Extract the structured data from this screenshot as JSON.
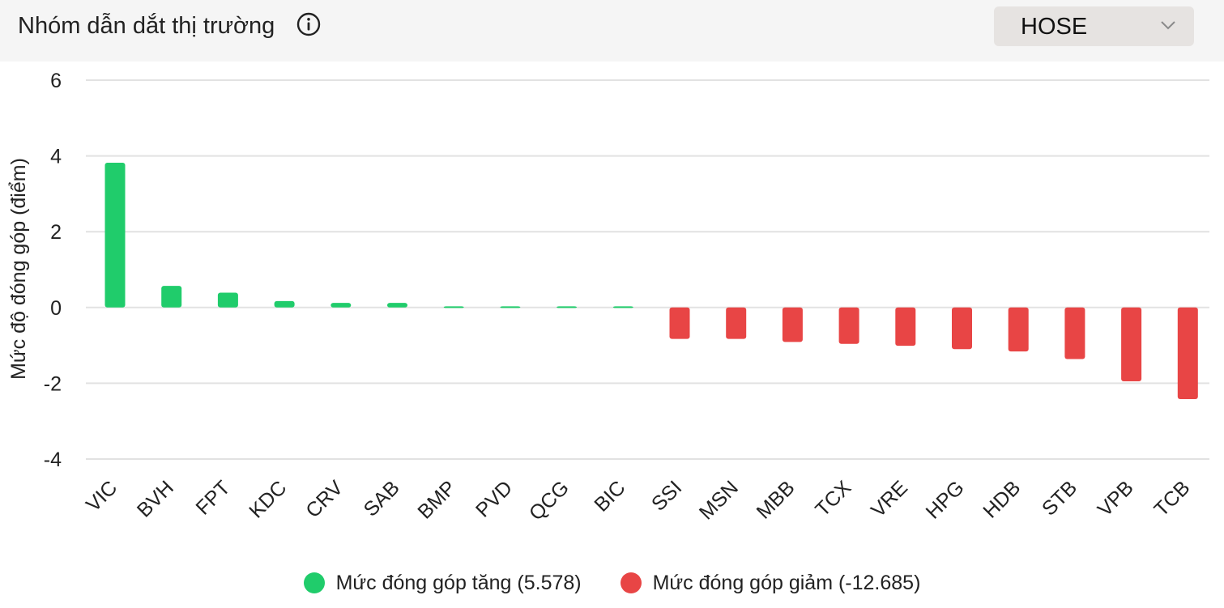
{
  "header": {
    "title": "Nhóm dẫn dắt thị trường",
    "info_icon": "info-icon",
    "exchange_select": {
      "value": "HOSE",
      "icon": "chevron-down-icon"
    }
  },
  "colors": {
    "positive": "#20cc6b",
    "negative": "#e84545",
    "grid": "#e2e2e2",
    "header_bg": "#f5f5f5",
    "select_bg": "#e6e3e1"
  },
  "legend": {
    "positive_label": "Mức đóng góp tăng (5.578)",
    "negative_label": "Mức đóng góp giảm (-12.685)"
  },
  "chart_data": {
    "type": "bar",
    "ylabel": "Mức độ đóng góp (điểm)",
    "ylim": [
      -4,
      6
    ],
    "yticks": [
      -4,
      -2,
      0,
      2,
      4,
      6
    ],
    "grid": true,
    "legend_position": "bottom",
    "categories": [
      "VIC",
      "BVH",
      "FPT",
      "KDC",
      "CRV",
      "SAB",
      "BMP",
      "PVD",
      "QCG",
      "BIC",
      "SSI",
      "MSN",
      "MBB",
      "TCX",
      "VRE",
      "HPG",
      "HDB",
      "STB",
      "VPB",
      "TCB"
    ],
    "values": [
      3.82,
      0.57,
      0.39,
      0.17,
      0.12,
      0.12,
      0.03,
      0.03,
      0.03,
      0.03,
      -0.83,
      -0.83,
      -0.91,
      -0.96,
      -1.01,
      -1.1,
      -1.16,
      -1.36,
      -1.95,
      -2.42
    ]
  }
}
